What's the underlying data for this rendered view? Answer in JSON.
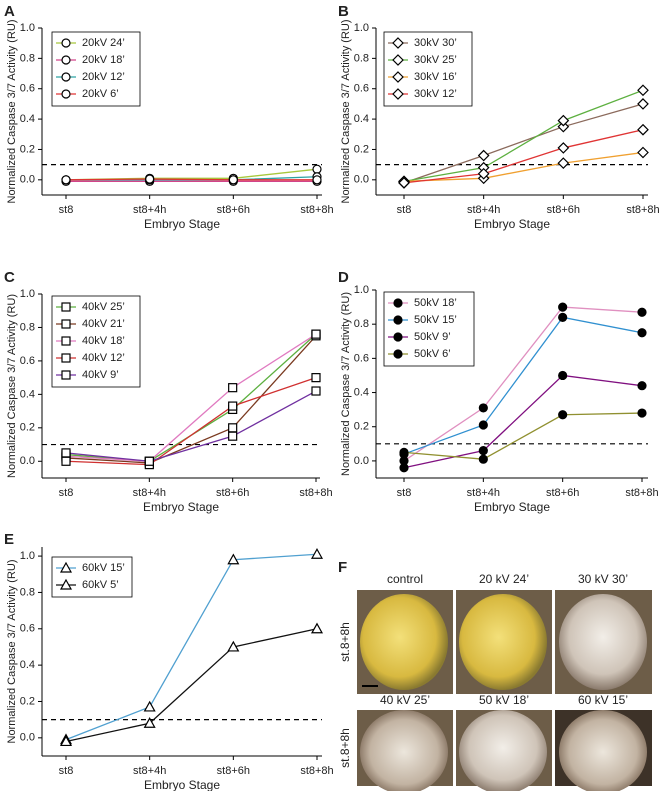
{
  "chart_data": [
    {
      "type": "line",
      "panel": "A",
      "xlabel": "Embryo Stage",
      "ylabel": "Normalized Caspase 3/7 Activity (RU)",
      "categories": [
        "st8",
        "st8+4h",
        "st8+6h",
        "st8+8h"
      ],
      "marker": "circle-open",
      "ylim": [
        -0.1,
        1.0
      ],
      "yticks": [
        {
          "value": 0,
          "label": "0.0"
        },
        0.2,
        0.4,
        0.6,
        0.8,
        {
          "value": 1,
          "label": "1.0"
        }
      ],
      "reference_line": 0.1,
      "series": [
        {
          "name": "20kV 24’",
          "color": "#a8c83c",
          "values": [
            0.0,
            0.01,
            0.01,
            0.07
          ]
        },
        {
          "name": "20kV 18’",
          "color": "#d2448a",
          "values": [
            -0.01,
            -0.01,
            -0.01,
            -0.01
          ]
        },
        {
          "name": "20kV 12’",
          "color": "#2fa3a3",
          "values": [
            0.0,
            0.0,
            0.0,
            0.02
          ]
        },
        {
          "name": "20kV 6’",
          "color": "#e03434",
          "values": [
            0.0,
            0.005,
            0.0,
            0.0
          ]
        }
      ]
    },
    {
      "type": "line",
      "panel": "B",
      "xlabel": "Embryo Stage",
      "ylabel": "Normalized Caspase 3/7 Activity (RU)",
      "categories": [
        "st8",
        "st8+4h",
        "st8+6h",
        "st8+8h"
      ],
      "marker": "diamond-open",
      "ylim": [
        -0.1,
        1.0
      ],
      "yticks": [
        {
          "value": 0,
          "label": "0.0"
        },
        0.2,
        0.4,
        0.6,
        0.8,
        {
          "value": 1,
          "label": "1.0"
        }
      ],
      "reference_line": 0.1,
      "series": [
        {
          "name": "30kV 30’",
          "color": "#8b6a5c",
          "values": [
            -0.02,
            0.16,
            0.35,
            0.5
          ]
        },
        {
          "name": "30kV 25’",
          "color": "#5db040",
          "values": [
            -0.01,
            0.08,
            0.39,
            0.59
          ]
        },
        {
          "name": "30kV 16’",
          "color": "#f0a030",
          "values": [
            -0.01,
            0.01,
            0.11,
            0.18
          ]
        },
        {
          "name": "30kV 12’",
          "color": "#e03434",
          "values": [
            -0.02,
            0.04,
            0.21,
            0.33
          ]
        }
      ]
    },
    {
      "type": "line",
      "panel": "C",
      "xlabel": "Embryo Stage",
      "ylabel": "Normalized Caspase 3/7 Activity (RU)",
      "categories": [
        "st8",
        "st8+4h",
        "st8+6h",
        "st8+8h"
      ],
      "marker": "square-open",
      "ylim": [
        -0.1,
        1.0
      ],
      "yticks": [
        {
          "value": 0,
          "label": "0.0"
        },
        0.2,
        0.4,
        0.6,
        0.8,
        {
          "value": 1,
          "label": "1.0"
        }
      ],
      "reference_line": 0.1,
      "series": [
        {
          "name": "40kV 25’",
          "color": "#5db040",
          "values": [
            0.04,
            0.0,
            0.31,
            0.76
          ]
        },
        {
          "name": "40kV 21’",
          "color": "#7a3a20",
          "values": [
            0.02,
            -0.01,
            0.2,
            0.75
          ]
        },
        {
          "name": "40kV 18’",
          "color": "#e07ac0",
          "values": [
            0.03,
            0.0,
            0.44,
            0.76
          ]
        },
        {
          "name": "40kV 12’",
          "color": "#d03030",
          "values": [
            0.0,
            -0.02,
            0.33,
            0.5
          ]
        },
        {
          "name": "40kV 9’",
          "color": "#7030a0",
          "values": [
            0.05,
            0.0,
            0.15,
            0.42
          ]
        }
      ]
    },
    {
      "type": "line",
      "panel": "D",
      "xlabel": "Embryo Stage",
      "ylabel": "Normalized Caspase 3/7 Activity (RU)",
      "categories": [
        "st8",
        "st8+4h",
        "st8+6h",
        "st8+8h"
      ],
      "marker": "circle-filled",
      "ylim": [
        -0.1,
        1.0
      ],
      "yticks": [
        {
          "value": 0,
          "label": "0.0"
        },
        0.2,
        0.4,
        0.6,
        0.8,
        {
          "value": 1,
          "label": "1.0"
        }
      ],
      "reference_line": 0.1,
      "series": [
        {
          "name": "50kV 18’",
          "color": "#e090c0",
          "values": [
            0.0,
            0.31,
            0.9,
            0.87
          ]
        },
        {
          "name": "50kV 15’",
          "color": "#3090d0",
          "values": [
            0.04,
            0.21,
            0.84,
            0.75
          ]
        },
        {
          "name": "50kV 9’",
          "color": "#801080",
          "values": [
            -0.04,
            0.06,
            0.5,
            0.44
          ]
        },
        {
          "name": "50kV 6’",
          "color": "#909030",
          "values": [
            0.05,
            0.01,
            0.27,
            0.28
          ]
        }
      ]
    },
    {
      "type": "line",
      "panel": "E",
      "xlabel": "Embryo Stage",
      "ylabel": "Normalized Caspase 3/7 Activity (RU)",
      "categories": [
        "st8",
        "st8+4h",
        "st8+6h",
        "st8+8h"
      ],
      "marker": "triangle-open",
      "ylim": [
        -0.1,
        1.05
      ],
      "yticks": [
        {
          "value": 0,
          "label": "0.0"
        },
        0.2,
        0.4,
        0.6,
        0.8,
        {
          "value": 1,
          "label": "1.0"
        }
      ],
      "reference_line": 0.1,
      "series": [
        {
          "name": "60kV 15’",
          "color": "#50a0d0",
          "values": [
            -0.01,
            0.17,
            0.98,
            1.01
          ]
        },
        {
          "name": "60kV 5’",
          "color": "#111111",
          "values": [
            -0.02,
            0.08,
            0.5,
            0.6
          ]
        }
      ]
    }
  ],
  "panel_f": {
    "panel": "F",
    "rows": [
      {
        "stage": "st.8+8h",
        "labels": [
          "control",
          "20 kV 24’",
          "30 kV 30’"
        ]
      },
      {
        "stage": "st.8+8h",
        "labels": [
          "40 kV 25’",
          "50 kV 18’",
          "60 kV 15’"
        ]
      }
    ]
  }
}
